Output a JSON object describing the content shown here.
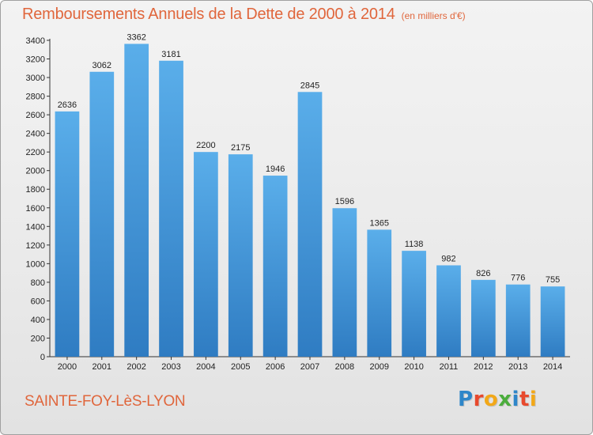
{
  "chart_data": {
    "type": "bar",
    "title": "Remboursements Annuels de la Dette de 2000 à 2014",
    "unit": "(en milliers d'€)",
    "categories": [
      "2000",
      "2001",
      "2002",
      "2003",
      "2004",
      "2005",
      "2006",
      "2007",
      "2008",
      "2009",
      "2010",
      "2011",
      "2012",
      "2013",
      "2014"
    ],
    "values": [
      2636,
      3062,
      3362,
      3181,
      2200,
      2175,
      1946,
      2845,
      1596,
      1365,
      1138,
      982,
      826,
      776,
      755
    ],
    "ylim": [
      0,
      3400
    ],
    "yticks": [
      0,
      200,
      400,
      600,
      800,
      1000,
      1200,
      1400,
      1600,
      1800,
      2000,
      2200,
      2400,
      2600,
      2800,
      3000,
      3200,
      3400
    ],
    "grid": false,
    "bar_color": "#4a9fe0"
  },
  "footer": {
    "city": "SAINTE-FOY-LèS-LYON",
    "logo_letters": [
      {
        "ch": "P",
        "color": "#2e86c9"
      },
      {
        "ch": "r",
        "color": "#e8492d"
      },
      {
        "ch": "o",
        "color": "#f2a818"
      },
      {
        "ch": "x",
        "color": "#4bad3c"
      },
      {
        "ch": "i",
        "color": "#2e86c9"
      },
      {
        "ch": "t",
        "color": "#e8492d"
      },
      {
        "ch": "i",
        "color": "#f2a818"
      }
    ]
  }
}
